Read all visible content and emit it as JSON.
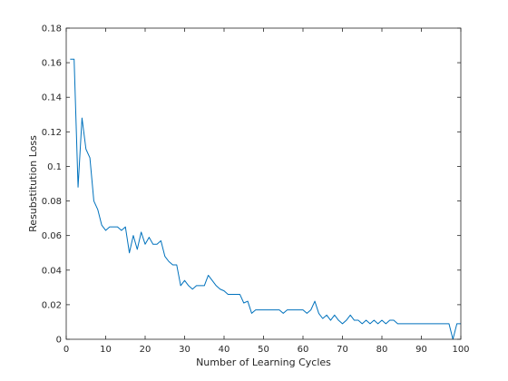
{
  "chart_data": {
    "type": "line",
    "title": "",
    "xlabel": "Number of Learning Cycles",
    "ylabel": "Resubstitution Loss",
    "xlim": [
      0,
      100
    ],
    "ylim": [
      0,
      0.18
    ],
    "xticks": [
      0,
      10,
      20,
      30,
      40,
      50,
      60,
      70,
      80,
      90,
      100
    ],
    "yticks": [
      0,
      0.02,
      0.04,
      0.06,
      0.08,
      0.1,
      0.12,
      0.14,
      0.16,
      0.18
    ],
    "xtick_labels": [
      "0",
      "10",
      "20",
      "30",
      "40",
      "50",
      "60",
      "70",
      "80",
      "90",
      "100"
    ],
    "ytick_labels": [
      "0",
      "0.02",
      "0.04",
      "0.06",
      "0.08",
      "0.1",
      "0.12",
      "0.14",
      "0.16",
      "0.18"
    ],
    "grid": false,
    "box": true,
    "line_color": "#0072bd",
    "axis_color": "#262626",
    "series": [
      {
        "x": [
          1,
          2,
          3,
          4,
          5,
          6,
          7,
          8,
          9,
          10,
          11,
          12,
          13,
          14,
          15,
          16,
          17,
          18,
          19,
          20,
          21,
          22,
          23,
          24,
          25,
          26,
          27,
          28,
          29,
          30,
          31,
          32,
          33,
          34,
          35,
          36,
          37,
          38,
          39,
          40,
          41,
          42,
          43,
          44,
          45,
          46,
          47,
          48,
          49,
          50,
          51,
          52,
          53,
          54,
          55,
          56,
          57,
          58,
          59,
          60,
          61,
          62,
          63,
          64,
          65,
          66,
          67,
          68,
          69,
          70,
          71,
          72,
          73,
          74,
          75,
          76,
          77,
          78,
          79,
          80,
          81,
          82,
          83,
          84,
          85,
          86,
          87,
          88,
          89,
          90,
          91,
          92,
          93,
          94,
          95,
          96,
          97,
          98,
          99,
          100
        ],
        "y": [
          0.162,
          0.162,
          0.088,
          0.128,
          0.11,
          0.105,
          0.08,
          0.075,
          0.066,
          0.063,
          0.065,
          0.065,
          0.065,
          0.063,
          0.065,
          0.05,
          0.06,
          0.052,
          0.062,
          0.055,
          0.059,
          0.055,
          0.055,
          0.057,
          0.048,
          0.045,
          0.043,
          0.043,
          0.031,
          0.034,
          0.031,
          0.029,
          0.031,
          0.031,
          0.031,
          0.037,
          0.034,
          0.031,
          0.029,
          0.028,
          0.026,
          0.026,
          0.026,
          0.026,
          0.021,
          0.022,
          0.015,
          0.017,
          0.017,
          0.017,
          0.017,
          0.017,
          0.017,
          0.017,
          0.015,
          0.017,
          0.017,
          0.017,
          0.017,
          0.017,
          0.015,
          0.017,
          0.022,
          0.015,
          0.012,
          0.014,
          0.011,
          0.014,
          0.011,
          0.009,
          0.011,
          0.014,
          0.011,
          0.011,
          0.009,
          0.011,
          0.009,
          0.011,
          0.009,
          0.011,
          0.009,
          0.011,
          0.011,
          0.009,
          0.009,
          0.009,
          0.009,
          0.009,
          0.009,
          0.009,
          0.009,
          0.009,
          0.009,
          0.009,
          0.009,
          0.009,
          0.009,
          0.0,
          0.009,
          0.009
        ]
      }
    ]
  }
}
